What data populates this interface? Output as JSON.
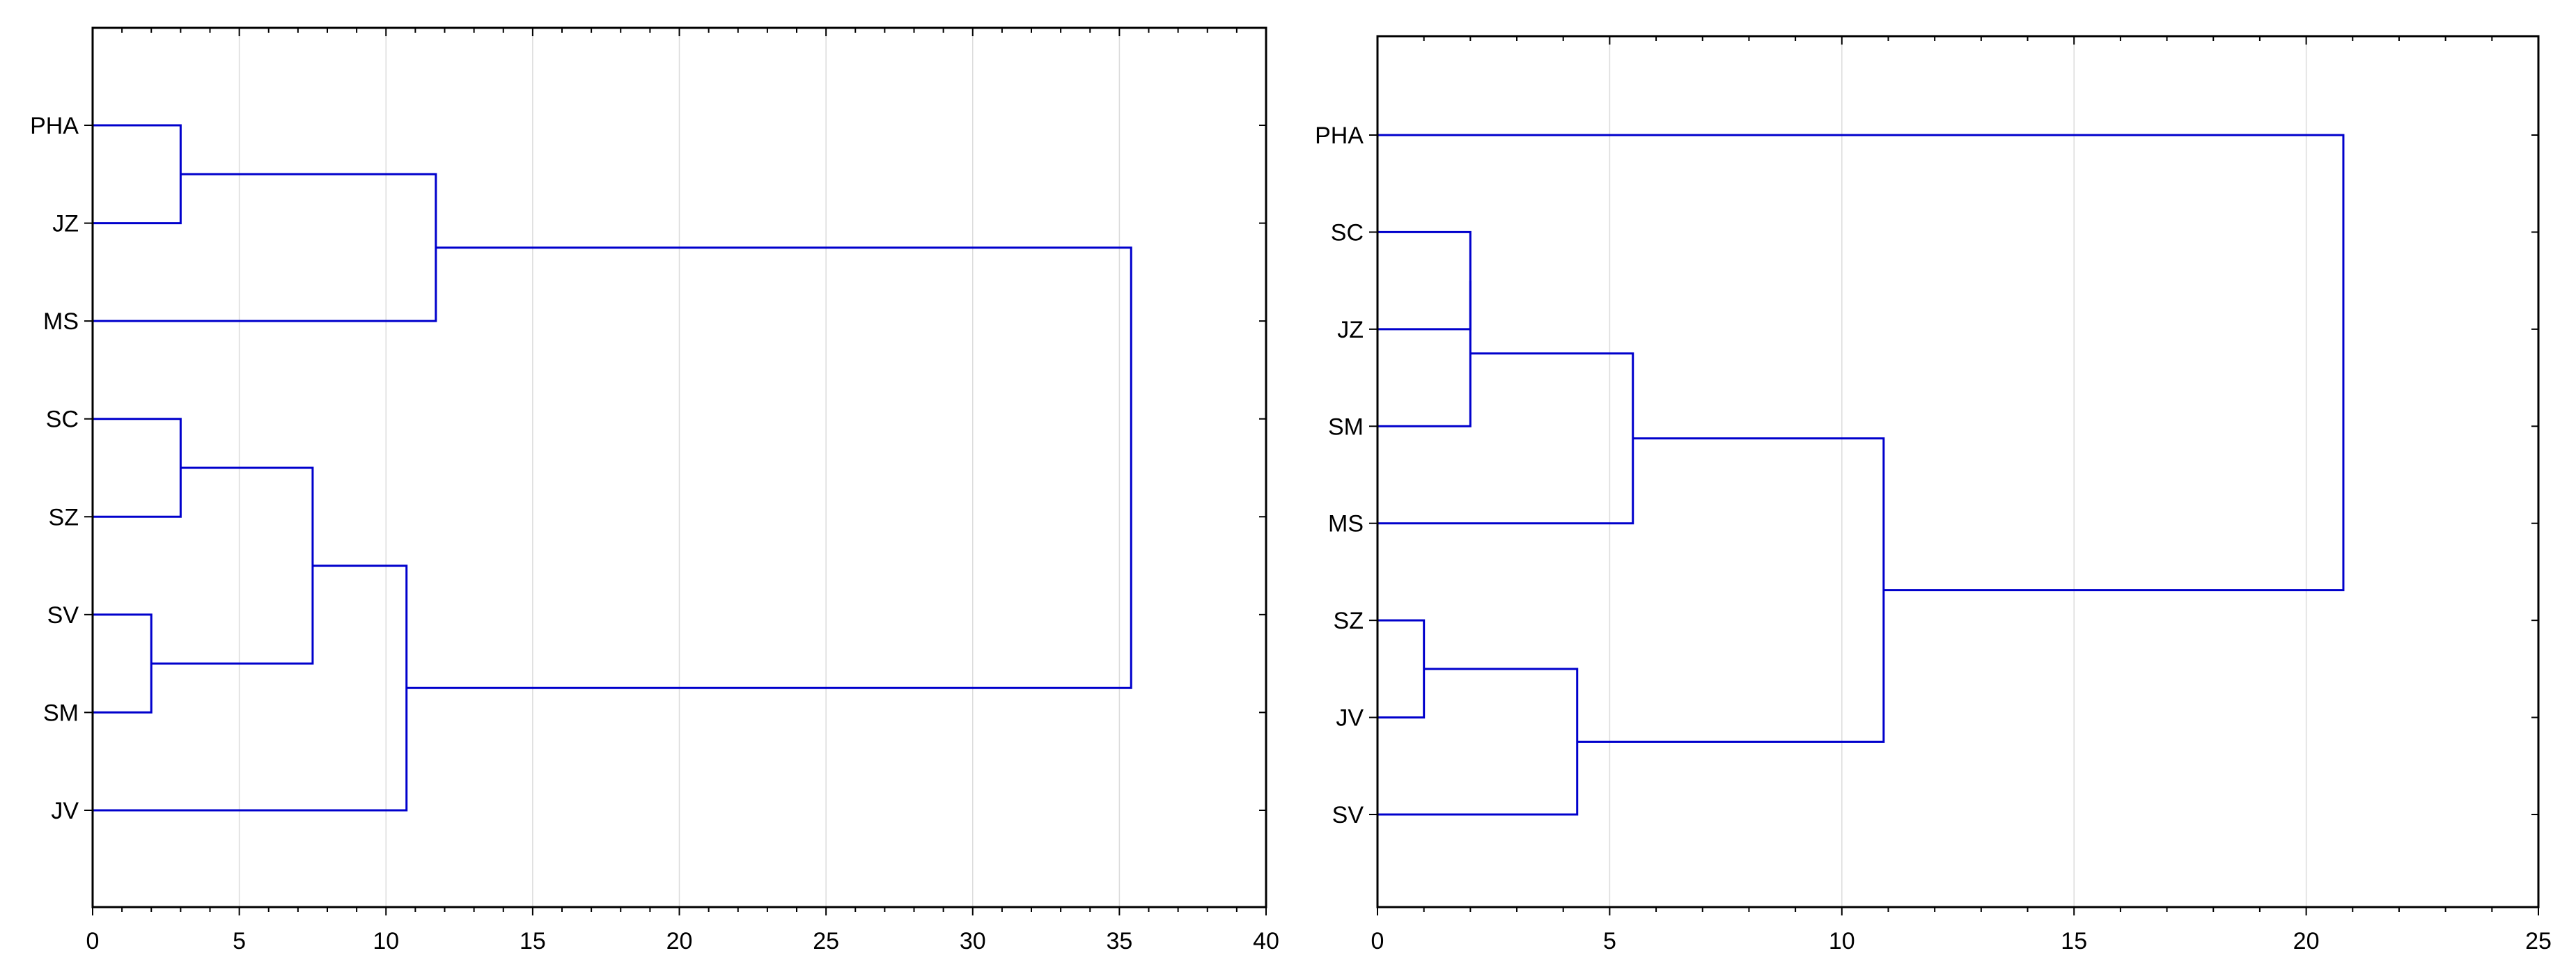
{
  "colors": {
    "link": "#0000cc",
    "axis": "#000000",
    "grid": "#dcdcdc"
  },
  "chart_data": [
    {
      "type": "dendrogram",
      "orientation": "horizontal",
      "title": "",
      "xlabel": "",
      "ylabel": "",
      "xlim": [
        0,
        40
      ],
      "xticks": [
        0,
        5,
        10,
        15,
        20,
        25,
        30,
        35,
        40
      ],
      "grid": true,
      "leaves": [
        "PHA",
        "JZ",
        "MS",
        "SC",
        "SZ",
        "SV",
        "SM",
        "JV"
      ],
      "merges": [
        {
          "a": "SV",
          "b": "SM",
          "height": 2.0
        },
        {
          "a": "PHA",
          "b": "JZ",
          "height": 3.0
        },
        {
          "a": "SC",
          "b": "SZ",
          "height": 3.0
        },
        {
          "a": "SC+SZ",
          "b": "SV+SM",
          "height": 7.5
        },
        {
          "a": "SC+SZ+SV+SM",
          "b": "JV",
          "height": 10.7
        },
        {
          "a": "PHA+JZ",
          "b": "MS",
          "height": 11.7
        },
        {
          "a": "PHA+JZ+MS",
          "b": "SC+SZ+SV+SM+JV",
          "height": 35.4
        }
      ]
    },
    {
      "type": "dendrogram",
      "orientation": "horizontal",
      "title": "",
      "xlabel": "",
      "ylabel": "",
      "xlim": [
        0,
        25
      ],
      "xticks": [
        0,
        5,
        10,
        15,
        20,
        25
      ],
      "grid": true,
      "leaves": [
        "PHA",
        "SC",
        "JZ",
        "SM",
        "MS",
        "SZ",
        "JV",
        "SV"
      ],
      "merges": [
        {
          "a": "SZ",
          "b": "JV",
          "height": 1.0
        },
        {
          "a": "SC",
          "b": "JZ",
          "height": 2.0
        },
        {
          "a": "SC+JZ",
          "b": "SM",
          "height": 2.0
        },
        {
          "a": "SZ+JV",
          "b": "SV",
          "height": 4.3
        },
        {
          "a": "SC+JZ+SM",
          "b": "MS",
          "height": 5.5
        },
        {
          "a": "SC+JZ+SM+MS",
          "b": "SZ+JV+SV",
          "height": 10.9
        },
        {
          "a": "PHA",
          "b": "SC+JZ+SM+MS+SZ+JV+SV",
          "height": 20.8
        }
      ]
    }
  ]
}
